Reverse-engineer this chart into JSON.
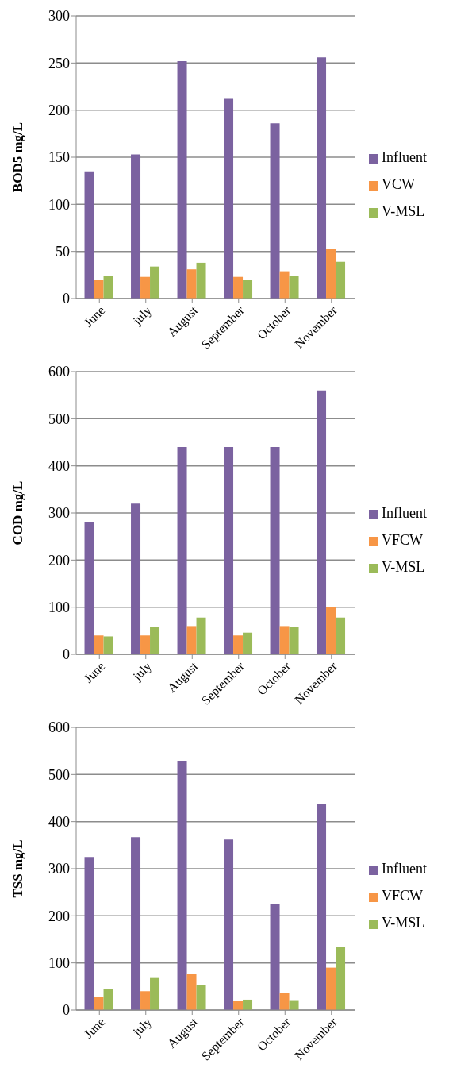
{
  "chart_data": [
    {
      "type": "bar",
      "ylabel": "BOD5 mg/L",
      "categories": [
        "June",
        "july",
        "August",
        "September",
        "October",
        "November"
      ],
      "series": [
        {
          "name": "Influent",
          "color": "#7b62a0",
          "values": [
            135,
            153,
            252,
            212,
            186,
            256
          ]
        },
        {
          "name": "VCW",
          "color": "#f79646",
          "values": [
            20,
            23,
            31,
            23,
            29,
            53
          ]
        },
        {
          "name": "V-MSL",
          "color": "#9bbb59",
          "values": [
            24,
            34,
            38,
            20,
            24,
            39
          ]
        }
      ],
      "ylim": [
        0,
        300
      ],
      "yticks": [
        0,
        50,
        100,
        150,
        200,
        250,
        300
      ],
      "grid": "y",
      "legend": "right"
    },
    {
      "type": "bar",
      "ylabel": "COD mg/L",
      "categories": [
        "June",
        "july",
        "August",
        "September",
        "October",
        "November"
      ],
      "series": [
        {
          "name": "Influent",
          "color": "#7b62a0",
          "values": [
            280,
            320,
            440,
            440,
            440,
            560
          ]
        },
        {
          "name": "VFCW",
          "color": "#f79646",
          "values": [
            40,
            40,
            60,
            40,
            60,
            100
          ]
        },
        {
          "name": "V-MSL",
          "color": "#9bbb59",
          "values": [
            38,
            58,
            78,
            46,
            58,
            78
          ]
        }
      ],
      "ylim": [
        0,
        600
      ],
      "yticks": [
        0,
        100,
        200,
        300,
        400,
        500,
        600
      ],
      "grid": "y",
      "legend": "right"
    },
    {
      "type": "bar",
      "ylabel": "TSS mg/L",
      "categories": [
        "June",
        "july",
        "August",
        "September",
        "October",
        "November"
      ],
      "series": [
        {
          "name": "Influent",
          "color": "#7b62a0",
          "values": [
            325,
            367,
            528,
            362,
            224,
            437
          ]
        },
        {
          "name": "VFCW",
          "color": "#f79646",
          "values": [
            28,
            40,
            76,
            20,
            36,
            90
          ]
        },
        {
          "name": "V-MSL",
          "color": "#9bbb59",
          "values": [
            45,
            68,
            53,
            22,
            21,
            134
          ]
        }
      ],
      "ylim": [
        0,
        600
      ],
      "yticks": [
        0,
        100,
        200,
        300,
        400,
        500,
        600
      ],
      "grid": "y",
      "legend": "right"
    }
  ]
}
